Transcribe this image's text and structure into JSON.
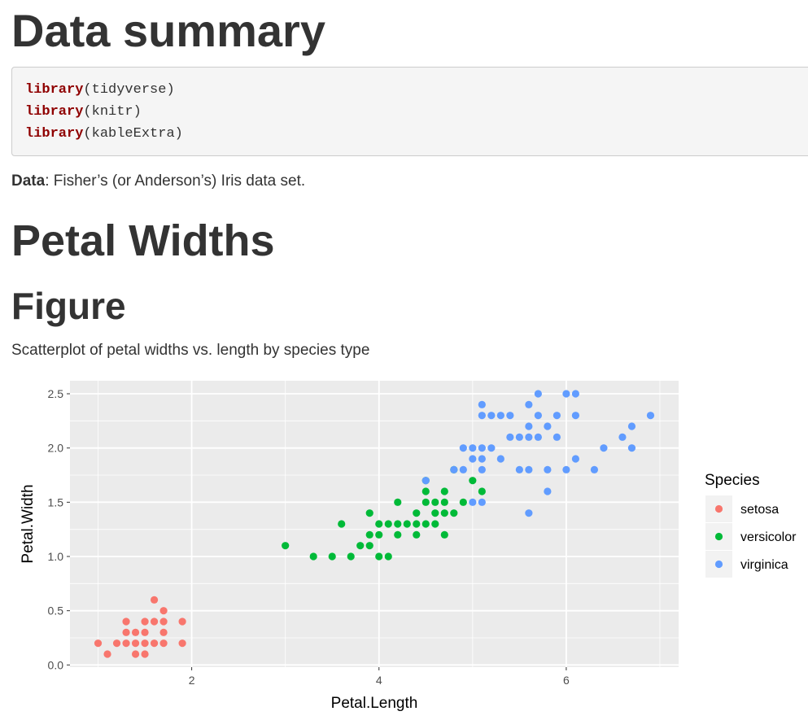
{
  "heading_summary": "Data summary",
  "code_lines": [
    {
      "fn": "library",
      "arg": "(tidyverse)"
    },
    {
      "fn": "library",
      "arg": "(knitr)"
    },
    {
      "fn": "library",
      "arg": "(kableExtra)"
    }
  ],
  "data_note": {
    "label": "Data",
    "text": ": Fisher’s (or Anderson’s) Iris data set."
  },
  "heading_petal": "Petal Widths",
  "heading_figure": "Figure",
  "caption": "Scatterplot of petal widths vs. length by species type",
  "colors": {
    "setosa": "#F8766D",
    "versicolor": "#00BA38",
    "virginica": "#619CFF",
    "keyword": "#8f0000",
    "panel": "#EBEBEB"
  },
  "chart_data": {
    "type": "scatter",
    "xlabel": "Petal.Length",
    "ylabel": "Petal.Width",
    "xlim": [
      0.7,
      7.2
    ],
    "ylim": [
      -0.02,
      2.62
    ],
    "x_ticks": [
      2,
      4,
      6
    ],
    "y_ticks": [
      0.0,
      0.5,
      1.0,
      1.5,
      2.0,
      2.5
    ],
    "x_tick_labels": [
      "2",
      "4",
      "6"
    ],
    "y_tick_labels": [
      "0.0",
      "0.5",
      "1.0",
      "1.5",
      "2.0",
      "2.5"
    ],
    "grid": true,
    "legend_title": "Species",
    "legend_position": "right",
    "series": [
      {
        "name": "setosa",
        "points": [
          [
            1.0,
            0.2
          ],
          [
            1.1,
            0.1
          ],
          [
            1.2,
            0.2
          ],
          [
            1.3,
            0.2
          ],
          [
            1.3,
            0.3
          ],
          [
            1.3,
            0.4
          ],
          [
            1.4,
            0.1
          ],
          [
            1.4,
            0.2
          ],
          [
            1.4,
            0.3
          ],
          [
            1.5,
            0.1
          ],
          [
            1.5,
            0.2
          ],
          [
            1.5,
            0.3
          ],
          [
            1.5,
            0.4
          ],
          [
            1.6,
            0.2
          ],
          [
            1.6,
            0.4
          ],
          [
            1.6,
            0.6
          ],
          [
            1.7,
            0.2
          ],
          [
            1.7,
            0.3
          ],
          [
            1.7,
            0.4
          ],
          [
            1.7,
            0.5
          ],
          [
            1.9,
            0.2
          ],
          [
            1.9,
            0.4
          ]
        ]
      },
      {
        "name": "versicolor",
        "points": [
          [
            3.0,
            1.1
          ],
          [
            3.3,
            1.0
          ],
          [
            3.5,
            1.0
          ],
          [
            3.6,
            1.3
          ],
          [
            3.7,
            1.0
          ],
          [
            3.8,
            1.1
          ],
          [
            3.9,
            1.1
          ],
          [
            3.9,
            1.2
          ],
          [
            3.9,
            1.4
          ],
          [
            4.0,
            1.0
          ],
          [
            4.0,
            1.2
          ],
          [
            4.0,
            1.3
          ],
          [
            4.1,
            1.0
          ],
          [
            4.1,
            1.3
          ],
          [
            4.2,
            1.2
          ],
          [
            4.2,
            1.3
          ],
          [
            4.2,
            1.5
          ],
          [
            4.3,
            1.3
          ],
          [
            4.4,
            1.2
          ],
          [
            4.4,
            1.3
          ],
          [
            4.4,
            1.4
          ],
          [
            4.5,
            1.3
          ],
          [
            4.5,
            1.5
          ],
          [
            4.5,
            1.6
          ],
          [
            4.5,
            1.7
          ],
          [
            4.6,
            1.3
          ],
          [
            4.6,
            1.4
          ],
          [
            4.6,
            1.5
          ],
          [
            4.7,
            1.2
          ],
          [
            4.7,
            1.4
          ],
          [
            4.7,
            1.5
          ],
          [
            4.7,
            1.6
          ],
          [
            4.8,
            1.4
          ],
          [
            4.8,
            1.8
          ],
          [
            4.9,
            1.5
          ],
          [
            5.0,
            1.7
          ],
          [
            5.1,
            1.6
          ]
        ]
      },
      {
        "name": "virginica",
        "points": [
          [
            4.5,
            1.7
          ],
          [
            4.8,
            1.8
          ],
          [
            4.9,
            1.8
          ],
          [
            4.9,
            2.0
          ],
          [
            5.0,
            1.5
          ],
          [
            5.0,
            1.9
          ],
          [
            5.0,
            2.0
          ],
          [
            5.1,
            1.5
          ],
          [
            5.1,
            1.8
          ],
          [
            5.1,
            1.9
          ],
          [
            5.1,
            2.0
          ],
          [
            5.1,
            2.3
          ],
          [
            5.1,
            2.4
          ],
          [
            5.2,
            2.0
          ],
          [
            5.2,
            2.3
          ],
          [
            5.3,
            1.9
          ],
          [
            5.3,
            2.3
          ],
          [
            5.4,
            2.1
          ],
          [
            5.4,
            2.3
          ],
          [
            5.5,
            1.8
          ],
          [
            5.5,
            2.1
          ],
          [
            5.6,
            1.4
          ],
          [
            5.6,
            1.8
          ],
          [
            5.6,
            2.1
          ],
          [
            5.6,
            2.2
          ],
          [
            5.6,
            2.4
          ],
          [
            5.7,
            2.1
          ],
          [
            5.7,
            2.3
          ],
          [
            5.7,
            2.5
          ],
          [
            5.8,
            1.6
          ],
          [
            5.8,
            1.8
          ],
          [
            5.8,
            2.2
          ],
          [
            5.9,
            2.1
          ],
          [
            5.9,
            2.3
          ],
          [
            6.0,
            1.8
          ],
          [
            6.0,
            2.5
          ],
          [
            6.1,
            1.9
          ],
          [
            6.1,
            2.3
          ],
          [
            6.1,
            2.5
          ],
          [
            6.3,
            1.8
          ],
          [
            6.4,
            2.0
          ],
          [
            6.6,
            2.1
          ],
          [
            6.7,
            2.0
          ],
          [
            6.7,
            2.2
          ],
          [
            6.9,
            2.3
          ]
        ]
      }
    ]
  }
}
